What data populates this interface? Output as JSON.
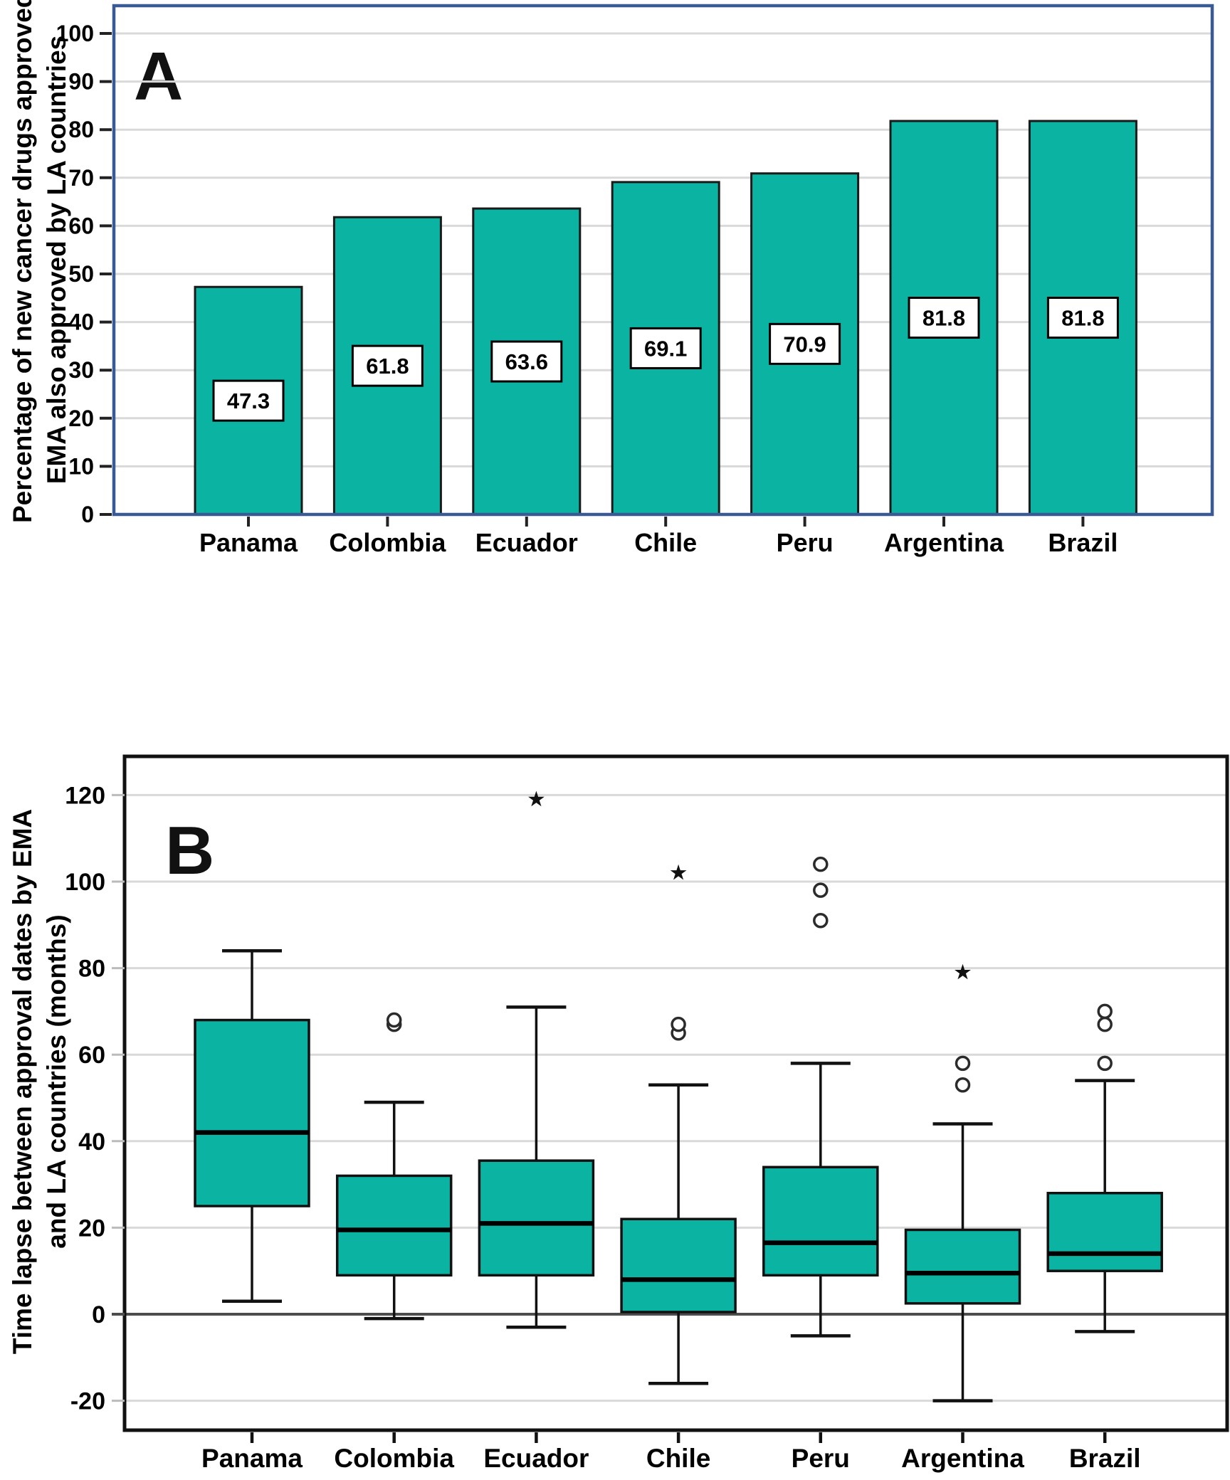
{
  "colors": {
    "bar_fill": "#0bb3a2",
    "bar_stroke": "#1a1a1a",
    "panel_a_border": "#3a5a96",
    "panel_b_border": "#111111",
    "grid": "#d9d9d9",
    "zero_line": "#4d4d4d",
    "tick_mark": "#222222",
    "label_box_bg": "#ffffff",
    "text": "#000000",
    "outlier_stroke": "#2b2b2b"
  },
  "chart_data": [
    {
      "id": "panel_a",
      "type": "bar",
      "panel_label": "A",
      "ylabel_lines": [
        "Percentage of new cancer drugs approved by",
        "EMA also approved by LA countries"
      ],
      "categories": [
        "Panama",
        "Colombia",
        "Ecuador",
        "Chile",
        "Peru",
        "Argentina",
        "Brazil"
      ],
      "values": [
        47.3,
        61.8,
        63.6,
        69.1,
        70.9,
        81.8,
        81.8
      ],
      "bar_labels": [
        "47.3",
        "61.8",
        "63.6",
        "69.1",
        "70.9",
        "81.8",
        "81.8"
      ],
      "yticks": [
        0,
        10,
        20,
        30,
        40,
        50,
        60,
        70,
        80,
        90,
        100
      ],
      "ylim": [
        0,
        105.8
      ],
      "grid": true,
      "legend": "none"
    },
    {
      "id": "panel_b",
      "type": "box",
      "panel_label": "B",
      "ylabel_lines": [
        "Time lapse between approval dates by EMA",
        "and LA countries (months)"
      ],
      "categories": [
        "Panama",
        "Colombia",
        "Ecuador",
        "Chile",
        "Peru",
        "Argentina",
        "Brazil"
      ],
      "yticks": [
        -20,
        0,
        20,
        40,
        60,
        80,
        100,
        120
      ],
      "ylim": [
        -27,
        129
      ],
      "grid": true,
      "boxes": [
        {
          "category": "Panama",
          "whisker_low": 3,
          "q1": 25,
          "median": 42,
          "q3": 68,
          "whisker_high": 84,
          "outliers": [],
          "extremes": []
        },
        {
          "category": "Colombia",
          "whisker_low": -1,
          "q1": 9,
          "median": 19.5,
          "q3": 32,
          "whisker_high": 49,
          "outliers": [
            67,
            68
          ],
          "extremes": []
        },
        {
          "category": "Ecuador",
          "whisker_low": -3,
          "q1": 9,
          "median": 21,
          "q3": 35.5,
          "whisker_high": 71,
          "outliers": [],
          "extremes": [
            119
          ]
        },
        {
          "category": "Chile",
          "whisker_low": -16,
          "q1": 0.5,
          "median": 8,
          "q3": 22,
          "whisker_high": 53,
          "outliers": [
            65,
            67
          ],
          "extremes": [
            102
          ]
        },
        {
          "category": "Peru",
          "whisker_low": -5,
          "q1": 9,
          "median": 16.5,
          "q3": 34,
          "whisker_high": 58,
          "outliers": [
            91,
            98,
            104
          ],
          "extremes": []
        },
        {
          "category": "Argentina",
          "whisker_low": -20,
          "q1": 2.5,
          "median": 9.5,
          "q3": 19.5,
          "whisker_high": 44,
          "outliers": [
            53,
            58
          ],
          "extremes": [
            79
          ]
        },
        {
          "category": "Brazil",
          "whisker_low": -4,
          "q1": 10,
          "median": 14,
          "q3": 28,
          "whisker_high": 54,
          "outliers": [
            58,
            67,
            70
          ],
          "extremes": []
        }
      ]
    }
  ]
}
